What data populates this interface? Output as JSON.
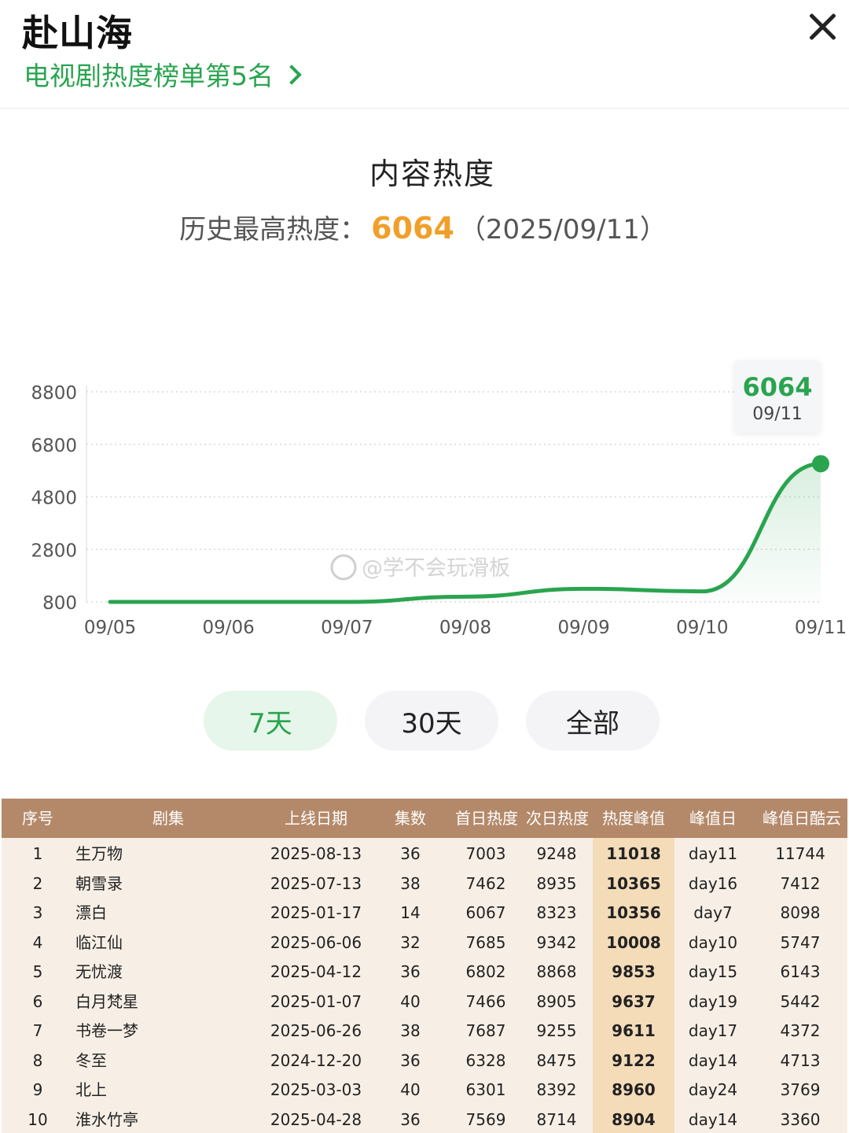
{
  "header": {
    "title": "赴山海",
    "rank_link": "电视剧热度榜单第5名"
  },
  "heat": {
    "section_title": "内容热度",
    "peak_label": "历史最高热度：",
    "peak_value": "6064",
    "peak_date": "（2025/09/11）"
  },
  "chart_data": {
    "type": "area",
    "x": [
      "09/05",
      "09/06",
      "09/07",
      "09/08",
      "09/09",
      "09/10",
      "09/11"
    ],
    "y_ticks": [
      "8800",
      "6800",
      "4800",
      "2800",
      "800"
    ],
    "ylim": [
      800,
      8800
    ],
    "series": [
      {
        "values": [
          800,
          800,
          800,
          1000,
          1300,
          1200,
          6064
        ]
      }
    ],
    "color": "#2aa44f",
    "tooltip": {
      "value": "6064",
      "date": "09/11"
    },
    "grid": "horizontal dotted"
  },
  "watermark": "@学不会玩滑板",
  "ranges": [
    "7天",
    "30天",
    "全部"
  ],
  "active_range": "7天",
  "table": {
    "headers": [
      "序号",
      "剧集",
      "上线日期",
      "集数",
      "首日热度",
      "次日热度",
      "热度峰值",
      "峰值日",
      "峰值日酷云"
    ],
    "rows": [
      [
        "1",
        "生万物",
        "2025-08-13",
        "36",
        "7003",
        "9248",
        "11018",
        "day11",
        "11744"
      ],
      [
        "2",
        "朝雪录",
        "2025-07-13",
        "38",
        "7462",
        "8935",
        "10365",
        "day16",
        "7412"
      ],
      [
        "3",
        "漂白",
        "2025-01-17",
        "14",
        "6067",
        "8323",
        "10356",
        "day7",
        "8098"
      ],
      [
        "4",
        "临江仙",
        "2025-06-06",
        "32",
        "7685",
        "9342",
        "10008",
        "day10",
        "5747"
      ],
      [
        "5",
        "无忧渡",
        "2025-04-12",
        "36",
        "6802",
        "8868",
        "9853",
        "day15",
        "6143"
      ],
      [
        "6",
        "白月梵星",
        "2025-01-07",
        "40",
        "7466",
        "8905",
        "9637",
        "day19",
        "5442"
      ],
      [
        "7",
        "书卷一梦",
        "2025-06-26",
        "38",
        "7687",
        "9255",
        "9611",
        "day17",
        "4372"
      ],
      [
        "8",
        "冬至",
        "2024-12-20",
        "36",
        "6328",
        "8475",
        "9122",
        "day14",
        "4713"
      ],
      [
        "9",
        "北上",
        "2025-03-03",
        "40",
        "6301",
        "8392",
        "8960",
        "day24",
        "3769"
      ],
      [
        "10",
        "淮水竹亭",
        "2025-04-28",
        "36",
        "7569",
        "8714",
        "8904",
        "day14",
        "3360"
      ]
    ]
  }
}
